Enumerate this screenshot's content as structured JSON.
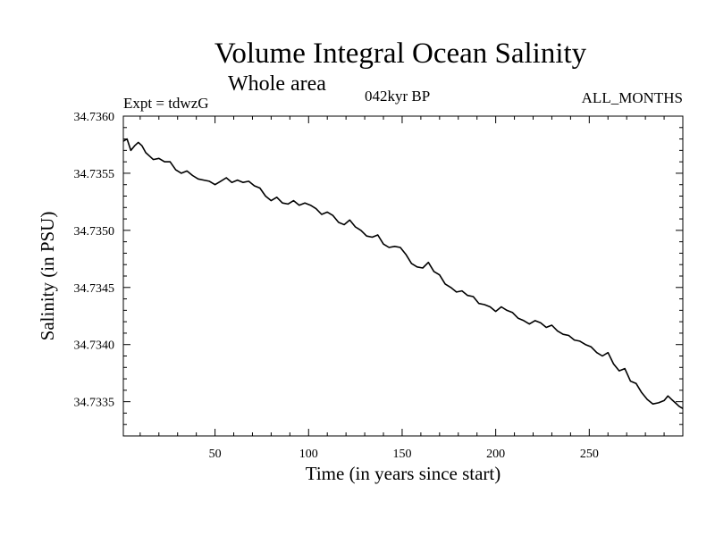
{
  "chart_data": {
    "type": "line",
    "title": "Volume Integral Ocean Salinity",
    "subtitle": "Whole area",
    "experiment": "Expt = tdwzG",
    "period": "042kyr BP",
    "months": "ALL_MONTHS",
    "xlabel": "Time (in years since start)",
    "ylabel": "Salinity (in PSU)",
    "xlim": [
      1,
      300
    ],
    "ylim": [
      34.7332,
      34.736
    ],
    "xticks": [
      50,
      100,
      150,
      200,
      250
    ],
    "xtick_labels": [
      "50",
      "100",
      "150",
      "200",
      "250"
    ],
    "yticks": [
      34.7335,
      34.734,
      34.7345,
      34.735,
      34.7355,
      34.736
    ],
    "ytick_labels": [
      "34.7335",
      "34.7340",
      "34.7345",
      "34.7350",
      "34.7355",
      "34.7360"
    ],
    "grid": false,
    "series": [
      {
        "x": [
          1,
          3,
          5,
          7,
          9,
          11,
          13,
          15,
          17,
          20,
          23,
          26,
          29,
          32,
          35,
          38,
          41,
          44,
          47,
          50,
          53,
          56,
          59,
          62,
          65,
          68,
          71,
          74,
          77,
          80,
          83,
          86,
          89,
          92,
          95,
          98,
          101,
          104,
          107,
          110,
          113,
          116,
          119,
          122,
          125,
          128,
          131,
          134,
          137,
          140,
          143,
          146,
          149,
          152,
          155,
          158,
          161,
          164,
          167,
          170,
          173,
          176,
          179,
          182,
          185,
          188,
          191,
          194,
          197,
          200,
          203,
          206,
          209,
          212,
          215,
          218,
          221,
          224,
          227,
          230,
          233,
          236,
          239,
          242,
          245,
          248,
          251,
          254,
          257,
          260,
          263,
          266,
          269,
          272,
          275,
          278,
          281,
          284,
          287,
          290,
          292,
          294,
          296,
          298,
          300
        ],
        "y": [
          34.73578,
          34.7358,
          34.7357,
          34.73574,
          34.73577,
          34.73574,
          34.73568,
          34.73565,
          34.73562,
          34.73563,
          34.7356,
          34.7356,
          34.73553,
          34.7355,
          34.73552,
          34.73548,
          34.73545,
          34.73544,
          34.73543,
          34.7354,
          34.73543,
          34.73546,
          34.73542,
          34.73544,
          34.73542,
          34.73543,
          34.73539,
          34.73537,
          34.7353,
          34.73526,
          34.73529,
          34.73524,
          34.73523,
          34.73526,
          34.73522,
          34.73524,
          34.73522,
          34.73519,
          34.73514,
          34.73516,
          34.73513,
          34.73507,
          34.73505,
          34.73509,
          34.73503,
          34.735,
          34.73495,
          34.73494,
          34.73496,
          34.73488,
          34.73485,
          34.73486,
          34.73485,
          34.73479,
          34.73471,
          34.73468,
          34.73467,
          34.73472,
          34.73464,
          34.73461,
          34.73453,
          34.7345,
          34.73446,
          34.73447,
          34.73443,
          34.73442,
          34.73436,
          34.73435,
          34.73433,
          34.73429,
          34.73433,
          34.7343,
          34.73428,
          34.73423,
          34.73421,
          34.73418,
          34.73421,
          34.73419,
          34.73415,
          34.73417,
          34.73412,
          34.73409,
          34.73408,
          34.73404,
          34.73403,
          34.734,
          34.73398,
          34.73393,
          34.7339,
          34.73393,
          34.73383,
          34.73377,
          34.73379,
          34.73368,
          34.73366,
          34.73358,
          34.73352,
          34.73348,
          34.73349,
          34.73351,
          34.73355,
          34.73352,
          34.73349,
          34.73346,
          34.73344
        ]
      }
    ]
  }
}
